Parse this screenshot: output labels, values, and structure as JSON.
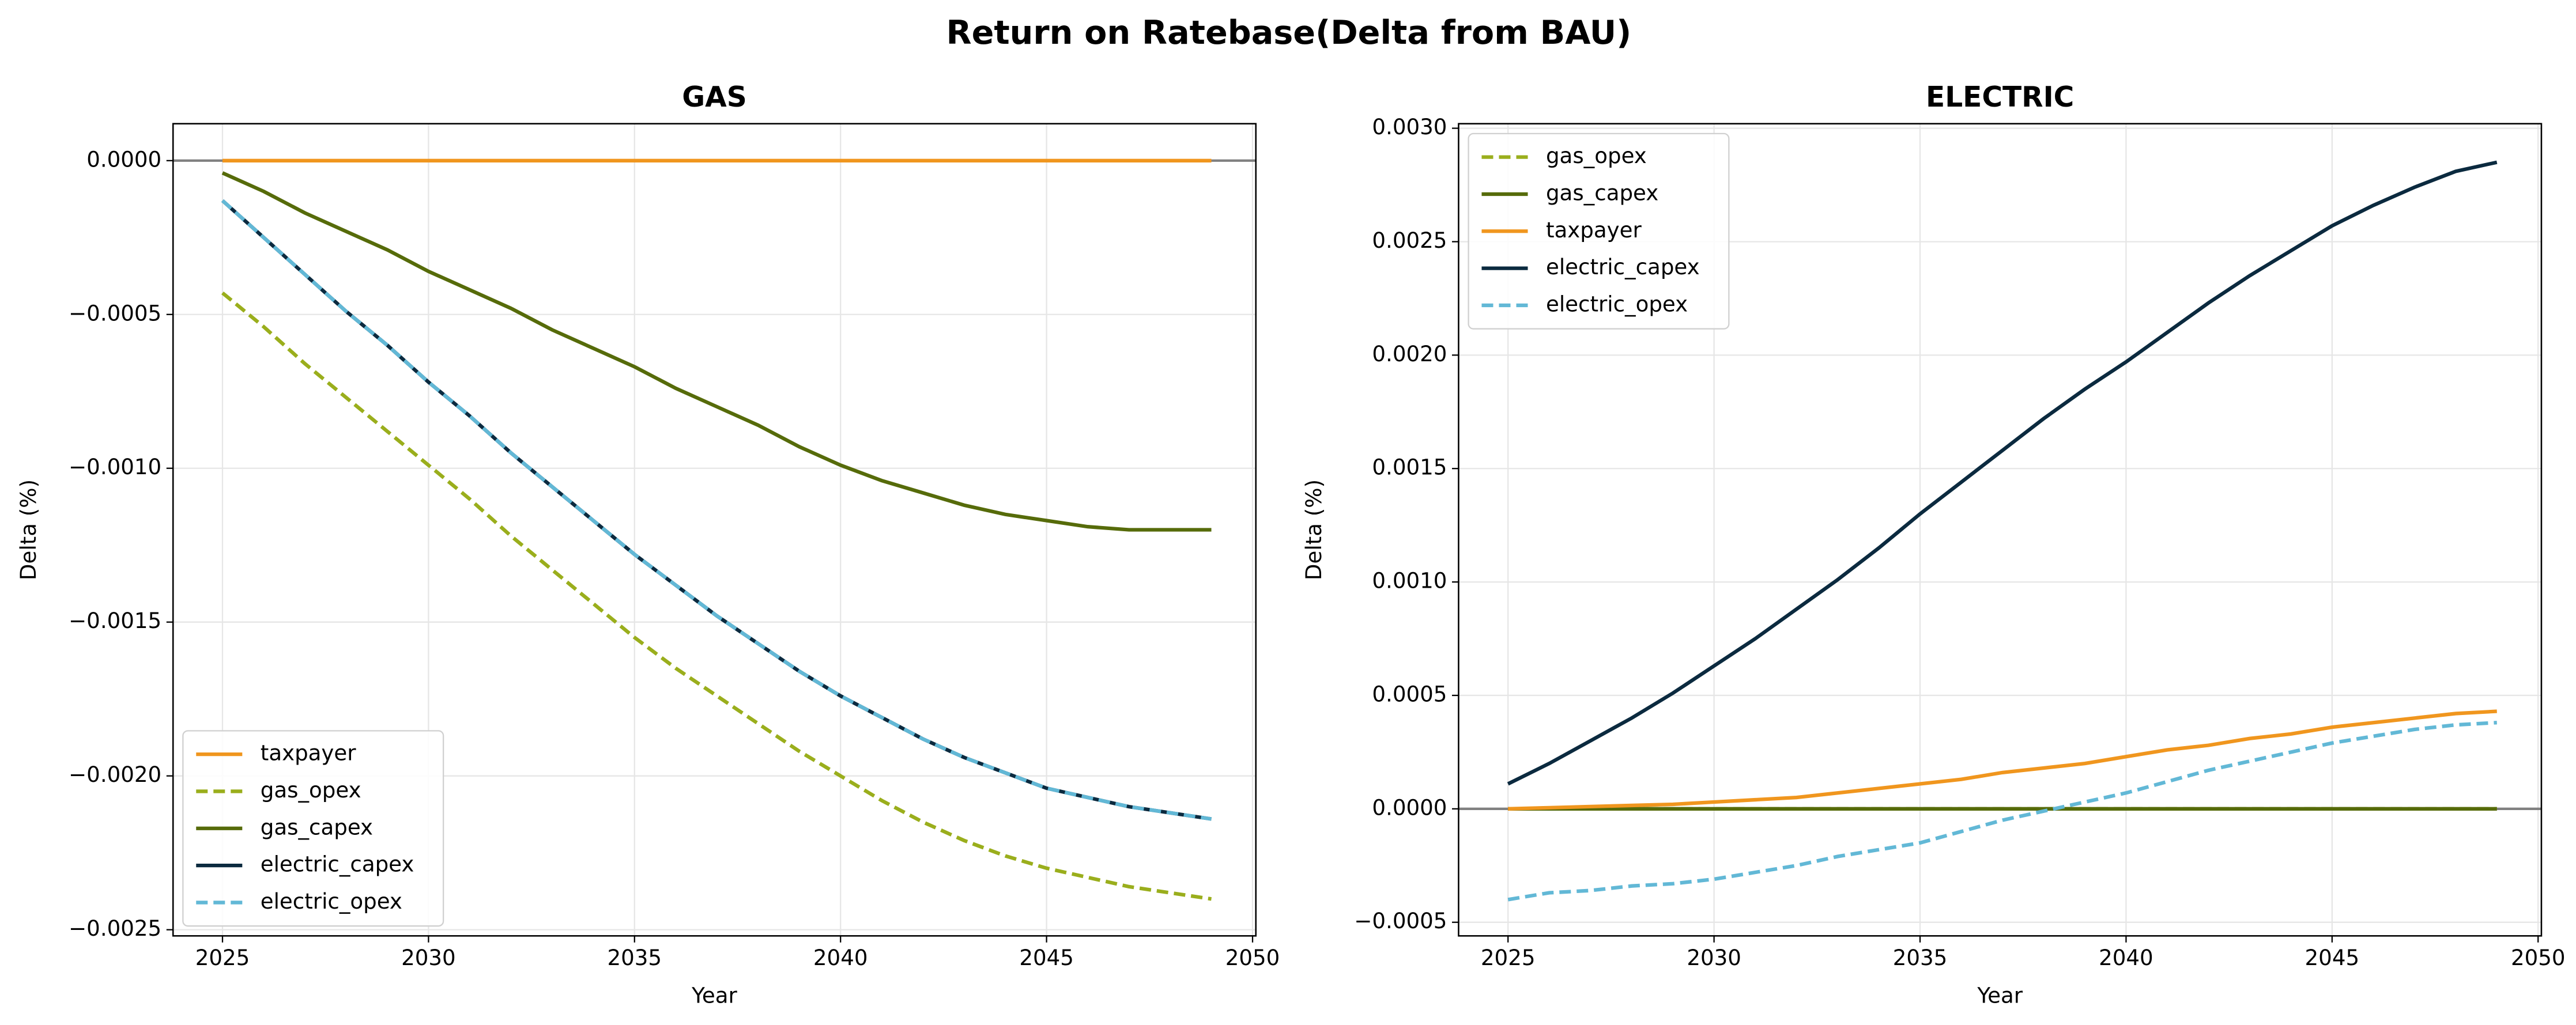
{
  "title": "Return on Ratebase(Delta from BAU)",
  "chart_data": [
    {
      "type": "line",
      "title": "GAS",
      "x_label": "Year",
      "y_label": "Delta (%)",
      "x": [
        2025,
        2026,
        2027,
        2028,
        2029,
        2030,
        2031,
        2032,
        2033,
        2034,
        2035,
        2036,
        2037,
        2038,
        2039,
        2040,
        2041,
        2042,
        2043,
        2044,
        2045,
        2046,
        2047,
        2048,
        2049
      ],
      "xlim": [
        2023.8,
        2050.08
      ],
      "xticks": [
        2025,
        2030,
        2035,
        2040,
        2045,
        2050
      ],
      "ylim": [
        -0.00252,
        0.00012
      ],
      "yticks": [
        {
          "value": 0,
          "label": "0.0000"
        },
        {
          "value": -0.0005,
          "label": "−0.0005"
        },
        {
          "value": -0.001,
          "label": "−0.0010"
        },
        {
          "value": -0.0015,
          "label": "−0.0015"
        },
        {
          "value": -0.002,
          "label": "−0.0020"
        },
        {
          "value": -0.0025,
          "label": "−0.0025"
        }
      ],
      "grid": true,
      "reference_line": 0,
      "legend": "lower left",
      "series": [
        {
          "name": "taxpayer",
          "color": "#f0961e",
          "style": "solid",
          "values": [
            0,
            0,
            0,
            0,
            0,
            0,
            0,
            0,
            0,
            0,
            0,
            0,
            0,
            0,
            0,
            0,
            0,
            0,
            0,
            0,
            0,
            0,
            0,
            0,
            0
          ]
        },
        {
          "name": "gas_opex",
          "color": "#9aae1c",
          "style": "dashed",
          "values": [
            -0.00043,
            -0.00054,
            -0.00066,
            -0.00077,
            -0.00088,
            -0.00099,
            -0.0011,
            -0.00122,
            -0.00133,
            -0.00144,
            -0.00155,
            -0.00165,
            -0.00174,
            -0.00183,
            -0.00192,
            -0.002,
            -0.00208,
            -0.00215,
            -0.00221,
            -0.00226,
            -0.0023,
            -0.00233,
            -0.00236,
            -0.00238,
            -0.0024
          ]
        },
        {
          "name": "gas_capex",
          "color": "#566b0a",
          "style": "solid",
          "values": [
            -4e-05,
            -0.0001,
            -0.00017,
            -0.00023,
            -0.00029,
            -0.00036,
            -0.00042,
            -0.00048,
            -0.00055,
            -0.00061,
            -0.00067,
            -0.00074,
            -0.0008,
            -0.00086,
            -0.00093,
            -0.00099,
            -0.00104,
            -0.00108,
            -0.00112,
            -0.00115,
            -0.00117,
            -0.00119,
            -0.0012,
            -0.0012,
            -0.0012
          ]
        },
        {
          "name": "electric_capex",
          "color": "#0b2a3f",
          "style": "solid",
          "values": [
            -0.00013,
            -0.00025,
            -0.00037,
            -0.00049,
            -0.0006,
            -0.00072,
            -0.00083,
            -0.00095,
            -0.00106,
            -0.00117,
            -0.00128,
            -0.00138,
            -0.00148,
            -0.00157,
            -0.00166,
            -0.00174,
            -0.00181,
            -0.00188,
            -0.00194,
            -0.00199,
            -0.00204,
            -0.00207,
            -0.0021,
            -0.00212,
            -0.00214
          ]
        },
        {
          "name": "electric_opex",
          "color": "#62b8d6",
          "style": "dashed",
          "values": [
            -0.00013,
            -0.00025,
            -0.00037,
            -0.00049,
            -0.0006,
            -0.00072,
            -0.00083,
            -0.00095,
            -0.00106,
            -0.00117,
            -0.00128,
            -0.00138,
            -0.00148,
            -0.00157,
            -0.00166,
            -0.00174,
            -0.00181,
            -0.00188,
            -0.00194,
            -0.00199,
            -0.00204,
            -0.00207,
            -0.0021,
            -0.00212,
            -0.00214
          ]
        }
      ]
    },
    {
      "type": "line",
      "title": "ELECTRIC",
      "x_label": "Year",
      "y_label": "Delta (%)",
      "x": [
        2025,
        2026,
        2027,
        2028,
        2029,
        2030,
        2031,
        2032,
        2033,
        2034,
        2035,
        2036,
        2037,
        2038,
        2039,
        2040,
        2041,
        2042,
        2043,
        2044,
        2045,
        2046,
        2047,
        2048,
        2049
      ],
      "xlim": [
        2023.8,
        2050.08
      ],
      "xticks": [
        2025,
        2030,
        2035,
        2040,
        2045,
        2050
      ],
      "ylim": [
        -0.00056,
        0.00302
      ],
      "yticks": [
        {
          "value": -0.0005,
          "label": "−0.0005"
        },
        {
          "value": 0,
          "label": "0.0000"
        },
        {
          "value": 0.0005,
          "label": "0.0005"
        },
        {
          "value": 0.001,
          "label": "0.0010"
        },
        {
          "value": 0.0015,
          "label": "0.0015"
        },
        {
          "value": 0.002,
          "label": "0.0020"
        },
        {
          "value": 0.0025,
          "label": "0.0025"
        },
        {
          "value": 0.003,
          "label": "0.0030"
        }
      ],
      "grid": true,
      "reference_line": 0,
      "legend": "upper left",
      "series": [
        {
          "name": "gas_opex",
          "color": "#9aae1c",
          "style": "dashed",
          "values": [
            0,
            0,
            0,
            0,
            0,
            0,
            0,
            0,
            0,
            0,
            0,
            0,
            0,
            0,
            0,
            0,
            0,
            0,
            0,
            0,
            0,
            0,
            0,
            0,
            0
          ]
        },
        {
          "name": "gas_capex",
          "color": "#566b0a",
          "style": "solid",
          "values": [
            0,
            0,
            0,
            0,
            0,
            0,
            0,
            0,
            0,
            0,
            0,
            0,
            0,
            0,
            0,
            0,
            0,
            0,
            0,
            0,
            0,
            0,
            0,
            0,
            0
          ]
        },
        {
          "name": "taxpayer",
          "color": "#f0961e",
          "style": "solid",
          "values": [
            0,
            5e-06,
            1e-05,
            1.5e-05,
            2e-05,
            3e-05,
            4e-05,
            5e-05,
            7e-05,
            9e-05,
            0.00011,
            0.00013,
            0.00016,
            0.00018,
            0.0002,
            0.00023,
            0.00026,
            0.00028,
            0.00031,
            0.00033,
            0.00036,
            0.00038,
            0.0004,
            0.00042,
            0.00043
          ]
        },
        {
          "name": "electric_capex",
          "color": "#0b2a3f",
          "style": "solid",
          "values": [
            0.00011,
            0.0002,
            0.0003,
            0.0004,
            0.00051,
            0.00063,
            0.00075,
            0.00088,
            0.00101,
            0.00115,
            0.0013,
            0.00144,
            0.00158,
            0.00172,
            0.00185,
            0.00197,
            0.0021,
            0.00223,
            0.00235,
            0.00246,
            0.00257,
            0.00266,
            0.00274,
            0.00281,
            0.00285
          ]
        },
        {
          "name": "electric_opex",
          "color": "#62b8d6",
          "style": "dashed",
          "values": [
            -0.0004,
            -0.00037,
            -0.00036,
            -0.00034,
            -0.00033,
            -0.00031,
            -0.00028,
            -0.00025,
            -0.00021,
            -0.00018,
            -0.00015,
            -0.0001,
            -5e-05,
            -1e-05,
            3e-05,
            7e-05,
            0.00012,
            0.00017,
            0.00021,
            0.00025,
            0.00029,
            0.00032,
            0.00035,
            0.00037,
            0.00038
          ]
        }
      ]
    }
  ]
}
